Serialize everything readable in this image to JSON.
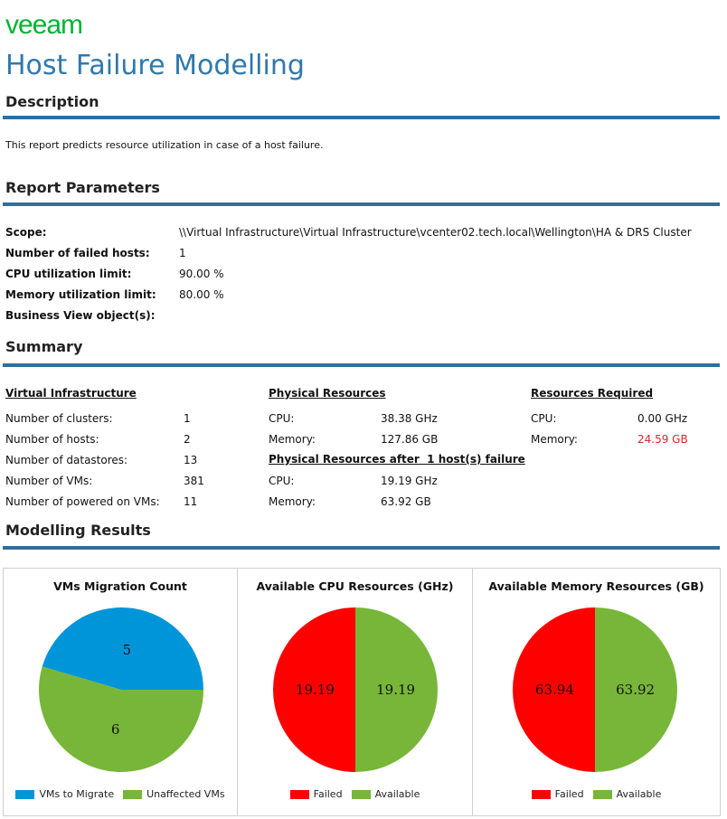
{
  "brand": {
    "logo_text": "veeam",
    "logo_color": "#00b336"
  },
  "page": {
    "title": "Host Failure Modelling"
  },
  "description": {
    "heading": "Description",
    "text": "This report predicts resource utilization in case of a host failure."
  },
  "parameters": {
    "heading": "Report Parameters",
    "rows": [
      {
        "label": "Scope:",
        "value": "\\\\Virtual Infrastructure\\Virtual Infrastructure\\vcenter02.tech.local\\Wellington\\HA & DRS Cluster"
      },
      {
        "label": "Number of failed hosts:",
        "value": "1"
      },
      {
        "label": "CPU utilization limit:",
        "value": "90.00 %"
      },
      {
        "label": "Memory utilization limit:",
        "value": "80.00 %"
      },
      {
        "label": "Business View object(s):",
        "value": ""
      }
    ]
  },
  "summary": {
    "heading": "Summary",
    "virtual": {
      "header": "Virtual Infrastructure",
      "rows": [
        {
          "label": "Number of clusters:",
          "value": "1"
        },
        {
          "label": "Number of hosts:",
          "value": "2"
        },
        {
          "label": "Number of datastores:",
          "value": "13"
        },
        {
          "label": "Number of VMs:",
          "value": "381"
        },
        {
          "label": "Number of powered on VMs:",
          "value": "11"
        }
      ]
    },
    "physical": {
      "header": "Physical Resources",
      "rows": [
        {
          "label": "CPU:",
          "value": "38.38 GHz"
        },
        {
          "label": "Memory:",
          "value": "127.86 GB"
        }
      ]
    },
    "after_failure": {
      "header": "Physical Resources after  1 host(s) failure",
      "rows": [
        {
          "label": "CPU:",
          "value": "19.19 GHz"
        },
        {
          "label": "Memory:",
          "value": "63.92 GB"
        }
      ]
    },
    "required": {
      "header": "Resources Required",
      "rows": [
        {
          "label": "CPU:",
          "value": "0.00 GHz"
        },
        {
          "label": "Memory:",
          "value": "24.59 GB"
        }
      ]
    }
  },
  "modelling": {
    "heading": "Modelling Results"
  },
  "colors": {
    "accent": "#2f79ad",
    "rule": "#2f6f9c",
    "green": "#77b638",
    "blue": "#0095d9",
    "red": "#ff0000",
    "alert_text": "#d8272b"
  },
  "chart_data": [
    {
      "type": "pie",
      "title": "VMs Migration Count",
      "series": [
        {
          "name": "VMs to Migrate",
          "value": 5,
          "label": "5",
          "color": "#0095d9"
        },
        {
          "name": "Unaffected VMs",
          "value": 6,
          "label": "6",
          "color": "#77b638"
        }
      ]
    },
    {
      "type": "pie",
      "title": "Available CPU Resources (GHz)",
      "series": [
        {
          "name": "Failed",
          "value": 19.19,
          "label": "19.19",
          "color": "#ff0000"
        },
        {
          "name": "Available",
          "value": 19.19,
          "label": "19.19",
          "color": "#77b638"
        }
      ]
    },
    {
      "type": "pie",
      "title": "Available Memory Resources (GB)",
      "series": [
        {
          "name": "Failed",
          "value": 63.94,
          "label": "63.94",
          "color": "#ff0000"
        },
        {
          "name": "Available",
          "value": 63.92,
          "label": "63.92",
          "color": "#77b638"
        }
      ]
    }
  ]
}
